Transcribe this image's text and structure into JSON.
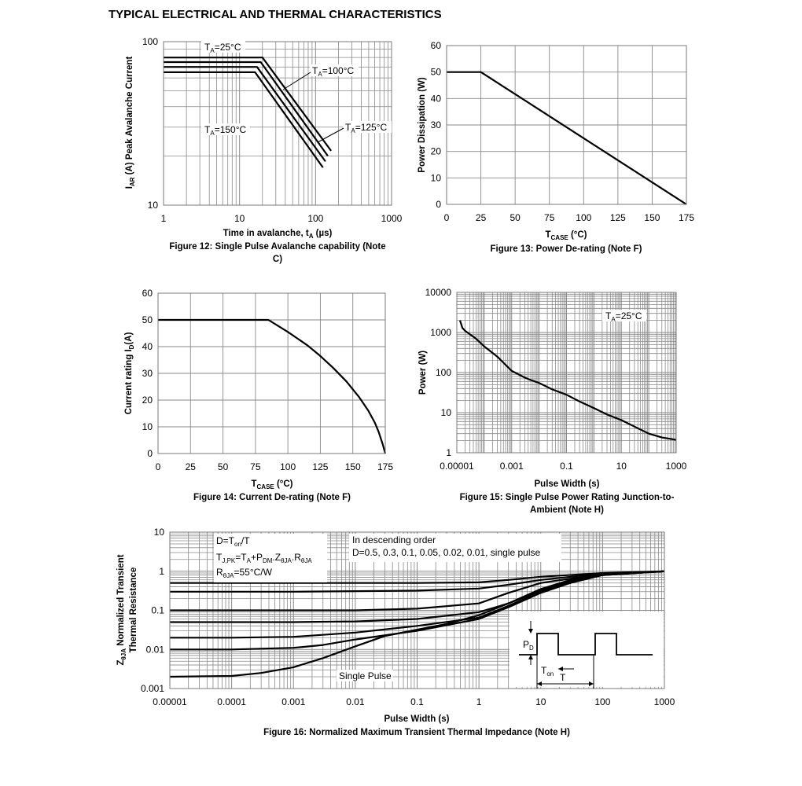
{
  "page": {
    "title": "TYPICAL ELECTRICAL AND THERMAL CHARACTERISTICS"
  },
  "colors": {
    "ink": "#000000",
    "grid": "#8a8a8a",
    "background": "#ffffff"
  },
  "chart_data": [
    {
      "id": "fig12",
      "type": "line",
      "caption": "Figure 12: Single Pulse Avalanche capability (Note C)",
      "xlabel": "Time in avalanche, t_A (µs)",
      "ylabel": "I_AR (A) Peak Avalanche Current",
      "x_scale": "log",
      "y_scale": "log",
      "xlim": [
        1,
        1000
      ],
      "ylim": [
        10,
        100
      ],
      "x_ticks": [
        "1",
        "10",
        "100",
        "1000"
      ],
      "y_ticks": [
        "10",
        "100"
      ],
      "grid": true,
      "series": [
        {
          "name": "T_A=25°C",
          "x": [
            1,
            20,
            160
          ],
          "y": [
            80,
            80,
            21.5
          ]
        },
        {
          "name": "T_A=100°C",
          "x": [
            1,
            19,
            145
          ],
          "y": [
            75,
            75,
            20
          ]
        },
        {
          "name": "T_A=125°C",
          "x": [
            1,
            17,
            135
          ],
          "y": [
            70,
            70,
            18.5
          ]
        },
        {
          "name": "T_A=150°C",
          "x": [
            1,
            16,
            125
          ],
          "y": [
            65,
            65,
            17
          ]
        }
      ]
    },
    {
      "id": "fig13",
      "type": "line",
      "caption": "Figure 13: Power De-rating (Note F)",
      "xlabel": "T_CASE (°C)",
      "ylabel": "Power Dissipation (W)",
      "xlim": [
        0,
        175
      ],
      "ylim": [
        0,
        60
      ],
      "x_ticks": [
        "0",
        "25",
        "50",
        "75",
        "100",
        "125",
        "150",
        "175"
      ],
      "y_ticks": [
        "0",
        "10",
        "20",
        "30",
        "40",
        "50",
        "60"
      ],
      "grid": true,
      "series": [
        {
          "x": [
            0,
            25,
            175
          ],
          "y": [
            50,
            50,
            0
          ]
        }
      ]
    },
    {
      "id": "fig14",
      "type": "line",
      "caption": "Figure 14: Current De-rating (Note F)",
      "xlabel": "T_CASE (°C)",
      "ylabel": "Current rating I_D(A)",
      "xlim": [
        0,
        175
      ],
      "ylim": [
        0,
        60
      ],
      "x_ticks": [
        "0",
        "25",
        "50",
        "75",
        "100",
        "125",
        "150",
        "175"
      ],
      "y_ticks": [
        "0",
        "10",
        "20",
        "30",
        "40",
        "50",
        "60"
      ],
      "grid": true,
      "series": [
        {
          "x": [
            0,
            85,
            100,
            115,
            125,
            135,
            145,
            155,
            162,
            167,
            170,
            173,
            175
          ],
          "y": [
            50,
            50,
            45.5,
            40.5,
            36.5,
            32,
            27,
            21,
            16,
            11.5,
            8,
            3.5,
            0
          ]
        }
      ]
    },
    {
      "id": "fig15",
      "type": "line",
      "caption": "Figure 15: Single Pulse Power Rating Junction-to-Ambient (Note H)",
      "xlabel": "Pulse Width (s)",
      "ylabel": "Power (W)",
      "x_scale": "log",
      "y_scale": "log",
      "xlim": [
        1e-05,
        1000
      ],
      "ylim": [
        1,
        10000
      ],
      "x_ticks": [
        "0.00001",
        "0.001",
        "0.1",
        "10",
        "1000"
      ],
      "y_ticks": [
        "1",
        "10",
        "100",
        "1000",
        "10000"
      ],
      "grid": true,
      "annotations": [
        "T_A=25°C"
      ],
      "series": [
        {
          "x": [
            1.3e-05,
            1.6e-05,
            2e-05,
            5e-05,
            0.0001,
            0.0003,
            0.001,
            0.003,
            0.005,
            0.01,
            0.03,
            0.1,
            0.3,
            1,
            3,
            10,
            30,
            100,
            300,
            1000
          ],
          "y": [
            2000,
            1300,
            1100,
            700,
            450,
            250,
            110,
            75,
            65,
            55,
            38,
            28,
            19,
            13,
            9,
            6.5,
            4.5,
            3,
            2.4,
            2.1
          ]
        }
      ]
    },
    {
      "id": "fig16",
      "type": "line",
      "caption": "Figure 16: Normalized Maximum Transient Thermal Impedance (Note H)",
      "xlabel": "Pulse Width (s)",
      "ylabel": "Z_θJA Normalized Transient Thermal Resistance",
      "x_scale": "log",
      "y_scale": "log",
      "xlim": [
        1e-05,
        1000
      ],
      "ylim": [
        0.001,
        10
      ],
      "x_ticks": [
        "0.00001",
        "0.0001",
        "0.001",
        "0.01",
        "0.1",
        "1",
        "10",
        "100",
        "1000"
      ],
      "y_ticks": [
        "0.001",
        "0.01",
        "0.1",
        "1",
        "10"
      ],
      "grid": true,
      "annotations": [
        "D=T_on/T",
        "T_J,PK=T_A+P_DM.Z_θJA.R_θJA",
        "R_θJA=55°C/W",
        "In descending order",
        "D=0.5, 0.3, 0.1, 0.05, 0.02, 0.01, single pulse",
        "Single Pulse",
        "P_D",
        "T_on",
        "T"
      ],
      "series": [
        {
          "name": "D=0.5",
          "x": [
            1e-05,
            0.001,
            0.1,
            1,
            3,
            10,
            100,
            1000
          ],
          "y": [
            0.5,
            0.5,
            0.5,
            0.52,
            0.6,
            0.72,
            0.9,
            1.0
          ]
        },
        {
          "name": "D=0.3",
          "x": [
            1e-05,
            0.001,
            0.1,
            1,
            3,
            10,
            100,
            1000
          ],
          "y": [
            0.3,
            0.3,
            0.32,
            0.36,
            0.45,
            0.6,
            0.88,
            1.0
          ]
        },
        {
          "name": "D=0.1",
          "x": [
            1e-05,
            0.001,
            0.01,
            0.1,
            1,
            3,
            10,
            100,
            1000
          ],
          "y": [
            0.1,
            0.1,
            0.1,
            0.11,
            0.15,
            0.28,
            0.5,
            0.85,
            1.0
          ]
        },
        {
          "name": "D=0.05",
          "x": [
            1e-05,
            0.001,
            0.01,
            0.1,
            1,
            3,
            10,
            30,
            100,
            1000
          ],
          "y": [
            0.05,
            0.05,
            0.052,
            0.06,
            0.09,
            0.15,
            0.35,
            0.6,
            0.83,
            1.0
          ]
        },
        {
          "name": "D=0.02",
          "x": [
            1e-05,
            0.0001,
            0.001,
            0.01,
            0.1,
            1,
            3,
            10,
            30,
            100,
            1000
          ],
          "y": [
            0.02,
            0.02,
            0.021,
            0.027,
            0.04,
            0.065,
            0.13,
            0.3,
            0.55,
            0.8,
            1.0
          ]
        },
        {
          "name": "D=0.01",
          "x": [
            1e-05,
            0.0001,
            0.001,
            0.003,
            0.01,
            0.1,
            1,
            3,
            10,
            30,
            100,
            1000
          ],
          "y": [
            0.01,
            0.01,
            0.011,
            0.013,
            0.018,
            0.03,
            0.06,
            0.12,
            0.28,
            0.5,
            0.8,
            1.0
          ]
        },
        {
          "name": "single pulse",
          "x": [
            1e-05,
            0.0001,
            0.0003,
            0.001,
            0.003,
            0.01,
            0.03,
            0.1,
            0.3,
            1,
            3,
            10,
            30,
            100,
            1000
          ],
          "y": [
            0.002,
            0.0021,
            0.0025,
            0.0035,
            0.006,
            0.012,
            0.022,
            0.032,
            0.045,
            0.075,
            0.15,
            0.32,
            0.55,
            0.8,
            1.0
          ]
        }
      ]
    }
  ]
}
